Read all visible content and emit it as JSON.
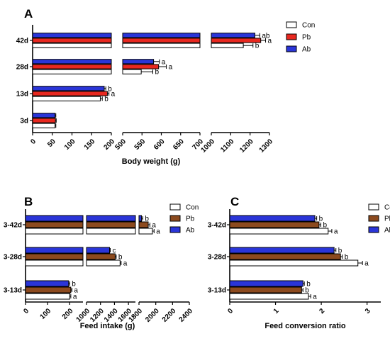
{
  "chart_data": [
    {
      "panel_label": "A",
      "type": "bar",
      "orientation": "horizontal",
      "xlabel": "Body weight (g)",
      "segments": [
        [
          0,
          200
        ],
        [
          500,
          700
        ],
        [
          1000,
          1300
        ]
      ],
      "ticks": [
        [
          0,
          50,
          100,
          150,
          200
        ],
        [
          500,
          550,
          600,
          650,
          700
        ],
        [
          1000,
          1100,
          1200,
          1300
        ]
      ],
      "categories": [
        "3d",
        "13d",
        "28d",
        "42d"
      ],
      "series": [
        {
          "name": "Con",
          "color": "#ffffff",
          "values": [
            57,
            172,
            548,
            1165
          ],
          "errors": [
            2,
            5,
            30,
            50
          ],
          "letters": [
            "",
            "b",
            "b",
            "b"
          ]
        },
        {
          "name": "Pb",
          "color": "#e8281f",
          "values": [
            58,
            190,
            593,
            1255
          ],
          "errors": [
            2,
            4,
            20,
            25
          ],
          "letters": [
            "",
            "a",
            "a",
            "a"
          ]
        },
        {
          "name": "Ab",
          "color": "#2a35d8",
          "values": [
            57,
            182,
            580,
            1225
          ],
          "errors": [
            2,
            4,
            15,
            25
          ],
          "letters": [
            "",
            "b",
            "a",
            "ab"
          ]
        }
      ],
      "legend": "top-right"
    },
    {
      "panel_label": "B",
      "type": "bar",
      "orientation": "horizontal",
      "xlabel": "Feed intake (g)",
      "segments": [
        [
          0,
          260
        ],
        [
          1000,
          1700
        ],
        [
          1800,
          2400
        ]
      ],
      "ticks": [
        [
          0,
          100,
          200
        ],
        [
          1000,
          1200,
          1400,
          1600
        ],
        [
          1800,
          2000,
          2200,
          2400
        ]
      ],
      "categories": [
        "3-13d",
        "3-28d",
        "3-42d"
      ],
      "series": [
        {
          "name": "Con",
          "color": "#ffffff",
          "values": [
            200,
            1480,
            1960
          ],
          "errors": [
            5,
            15,
            20
          ],
          "letters": [
            "a",
            "a",
            "a"
          ]
        },
        {
          "name": "Pb",
          "color": "#8c4a1e",
          "values": [
            205,
            1410,
            1910
          ],
          "errors": [
            5,
            15,
            20
          ],
          "letters": [
            "a",
            "b",
            "a"
          ]
        },
        {
          "name": "Ab",
          "color": "#2a35d8",
          "values": [
            195,
            1330,
            1830
          ],
          "errors": [
            5,
            10,
            15
          ],
          "letters": [
            "b",
            "c",
            "b"
          ]
        }
      ],
      "legend": "top-right"
    },
    {
      "panel_label": "C",
      "type": "bar",
      "orientation": "horizontal",
      "xlabel": "Feed conversion ratio",
      "segments": [
        [
          0,
          3.3
        ]
      ],
      "ticks": [
        [
          0,
          1,
          2,
          3
        ]
      ],
      "categories": [
        "3-13d",
        "3-28d",
        "3-42d"
      ],
      "series": [
        {
          "name": "Con",
          "color": "#ffffff",
          "values": [
            1.72,
            2.8,
            2.15
          ],
          "errors": [
            0.05,
            0.1,
            0.08
          ],
          "letters": [
            "a",
            "a",
            "a"
          ]
        },
        {
          "name": "Pb",
          "color": "#8c4a1e",
          "values": [
            1.57,
            2.42,
            1.95
          ],
          "errors": [
            0.03,
            0.04,
            0.04
          ],
          "letters": [
            "b",
            "b",
            "b"
          ]
        },
        {
          "name": "Ab",
          "color": "#2a35d8",
          "values": [
            1.6,
            2.28,
            1.86
          ],
          "errors": [
            0.03,
            0.04,
            0.04
          ],
          "letters": [
            "b",
            "b",
            "b"
          ]
        }
      ],
      "legend": "top-right"
    }
  ]
}
